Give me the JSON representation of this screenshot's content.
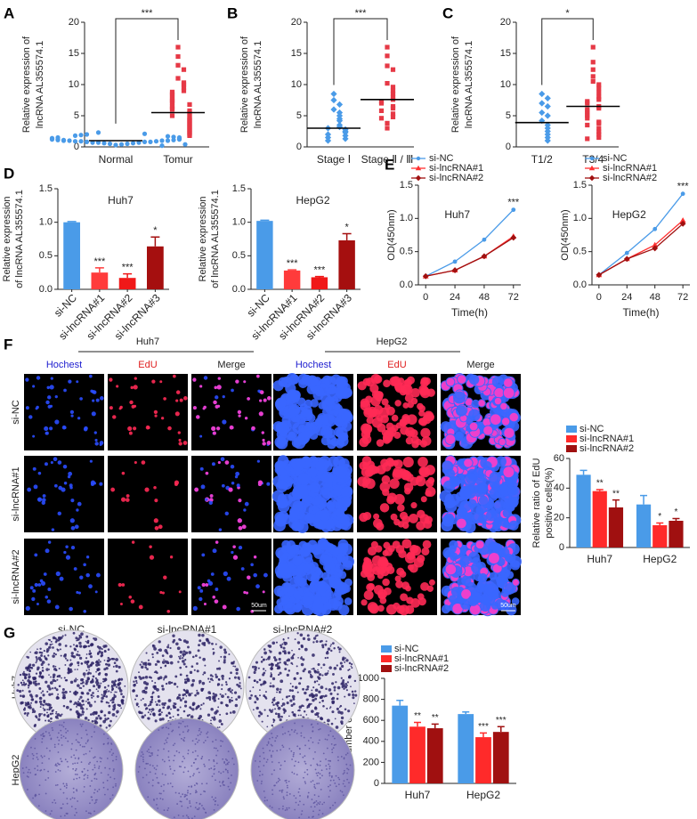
{
  "panel_labels": [
    "A",
    "B",
    "C",
    "D",
    "E",
    "F",
    "G"
  ],
  "edu": {
    "cell_lines": [
      "Huh7",
      "HepG2"
    ],
    "stains": [
      "Hochest",
      "EdU",
      "Merge"
    ],
    "rows": [
      "si-NC",
      "si-lncRNA#1",
      "si-lncRNA#2"
    ],
    "scale_bar": "50um"
  },
  "colony": {
    "columns": [
      "si-NC",
      "si-lncRNA#1",
      "si-lncRNA#2"
    ],
    "rows": [
      "Huh7",
      "HepG2"
    ]
  },
  "chart_data": [
    {
      "type": "strip",
      "ylabel": [
        "Relative expression of",
        "lncRNA AL355574.1"
      ],
      "categories": [
        "Normal",
        "Tomur"
      ],
      "colors": [
        "#4a9be8",
        "#e63946"
      ],
      "markers": [
        "circle",
        "square"
      ],
      "points": [
        [
          0.3,
          0.4,
          0.5,
          0.5,
          0.6,
          0.6,
          0.7,
          0.7,
          0.7,
          0.8,
          0.8,
          0.8,
          0.9,
          0.9,
          0.9,
          1.0,
          1.0,
          1.0,
          1.0,
          1.1,
          1.1,
          1.1,
          1.2,
          1.2,
          1.2,
          1.3,
          1.3,
          1.4,
          1.4,
          1.5,
          1.5,
          1.6,
          1.7,
          1.8,
          1.9,
          2.0,
          2.1,
          2.3,
          0.2,
          0.4
        ],
        [
          16.0,
          14.5,
          13.1,
          12.4,
          11.0,
          10.3,
          10.0,
          9.5,
          9.0,
          8.8,
          8.5,
          8.2,
          7.8,
          7.5,
          7.3,
          7.0,
          6.8,
          6.5,
          6.2,
          6.0,
          5.8,
          5.5,
          5.3,
          5.0,
          4.8,
          4.6,
          4.4,
          4.2,
          4.0,
          3.8,
          3.6,
          3.4,
          3.2,
          3.0,
          2.8,
          2.6,
          2.4,
          2.2,
          2.0,
          1.8
        ]
      ],
      "means": [
        1.0,
        5.5
      ],
      "annotation": "***",
      "ylim": [
        0,
        20
      ],
      "yticks": [
        0,
        5,
        10,
        15,
        20
      ]
    },
    {
      "type": "strip",
      "ylabel": [
        "Relative expression of",
        "lncRNA AL355574.1"
      ],
      "categories": [
        "Stage Ⅰ",
        "Stage Ⅱ / Ⅲ"
      ],
      "colors": [
        "#4a9be8",
        "#e63946"
      ],
      "markers": [
        "diamond",
        "square"
      ],
      "points": [
        [
          8.5,
          7.5,
          6.8,
          6.0,
          5.5,
          5.0,
          4.5,
          4.2,
          3.5,
          3.2,
          3.0,
          2.8,
          2.5,
          2.3,
          2.0,
          1.8,
          1.5,
          1.3,
          1.0
        ],
        [
          16.0,
          14.6,
          13.0,
          12.4,
          10.2,
          9.6,
          9.0,
          8.5,
          8.0,
          7.6,
          7.3,
          7.0,
          6.5,
          6.2,
          5.8,
          5.3,
          4.8,
          4.6,
          3.8,
          3.0
        ]
      ],
      "means": [
        3.0,
        7.6
      ],
      "annotation": "***",
      "ylim": [
        0,
        20
      ],
      "yticks": [
        0,
        5,
        10,
        15,
        20
      ]
    },
    {
      "type": "strip",
      "ylabel": [
        "Relative expression of",
        "lncRNA AL355574.1"
      ],
      "categories": [
        "T1/2",
        "T3/4"
      ],
      "colors": [
        "#4a9be8",
        "#e63946"
      ],
      "markers": [
        "diamond",
        "square"
      ],
      "points": [
        [
          8.5,
          7.8,
          7.0,
          6.5,
          5.5,
          5.0,
          4.2,
          3.5,
          3.0,
          2.5,
          2.0,
          1.5,
          1.0
        ],
        [
          16.0,
          13.6,
          12.4,
          11.3,
          10.5,
          10.0,
          9.4,
          8.7,
          8.0,
          7.6,
          7.3,
          7.0,
          6.5,
          6.2,
          6.0,
          5.7,
          5.3,
          5.0,
          4.6,
          4.0,
          3.8,
          3.5,
          3.0,
          2.4,
          2.0,
          1.5,
          1.3
        ]
      ],
      "means": [
        3.9,
        6.5
      ],
      "annotation": "*",
      "ylim": [
        0,
        20
      ],
      "yticks": [
        0,
        5,
        10,
        15,
        20
      ]
    },
    {
      "type": "bar",
      "title": "Huh7",
      "ylabel": [
        "Relative expression",
        "of lncRNA AL355574.1"
      ],
      "categories": [
        "si-NC",
        "si-lncRNA#1",
        "si-lncRNA#2",
        "si-lncRNA#3"
      ],
      "values": [
        1.0,
        0.25,
        0.17,
        0.64
      ],
      "errors": [
        0.01,
        0.07,
        0.06,
        0.14
      ],
      "sig": [
        null,
        "***",
        "***",
        "*"
      ],
      "colors": [
        "#4a9be8",
        "#ff3b3b",
        "#f01818",
        "#a50f0f"
      ],
      "ylim": [
        0,
        1.5
      ],
      "yticks": [
        {
          "value": 0,
          "label": "0.0"
        },
        0.5,
        {
          "value": 1,
          "label": "1.0"
        },
        1.5
      ]
    },
    {
      "type": "bar",
      "title": "HepG2",
      "ylabel": [
        "Relative expression",
        "of lncRNA AL355574.1"
      ],
      "categories": [
        "si-NC",
        "si-lncRNA#1",
        "si-lncRNA#2",
        "si-lncRNA#3"
      ],
      "values": [
        1.02,
        0.28,
        0.18,
        0.73
      ],
      "errors": [
        0.01,
        0.01,
        0.01,
        0.1
      ],
      "sig": [
        null,
        "***",
        "***",
        "*"
      ],
      "colors": [
        "#4a9be8",
        "#ff3b3b",
        "#f01818",
        "#a50f0f"
      ],
      "ylim": [
        0,
        1.5
      ],
      "yticks": [
        {
          "value": 0,
          "label": "0.0"
        },
        0.5,
        {
          "value": 1,
          "label": "1.0"
        },
        1.5
      ]
    },
    {
      "type": "line",
      "title": "Huh7",
      "ylabel": [
        "OD(450nm)"
      ],
      "xlabel": "Time(h)",
      "x": [
        0,
        24,
        48,
        72
      ],
      "series": [
        {
          "name": "si-NC",
          "color": "#4a9be8",
          "marker": "circle",
          "values": [
            0.13,
            0.35,
            0.68,
            1.13
          ]
        },
        {
          "name": "si-lncRNA#1",
          "color": "#ff3030",
          "marker": "triangle",
          "values": [
            0.13,
            0.22,
            0.43,
            0.73
          ]
        },
        {
          "name": "si-lncRNA#2",
          "color": "#a01010",
          "marker": "diamond",
          "values": [
            0.13,
            0.22,
            0.43,
            0.71
          ]
        }
      ],
      "annotation": "***",
      "xlim": [
        -6,
        78
      ],
      "xticks": [
        0,
        24,
        48,
        72
      ],
      "ylim": [
        0,
        1.5
      ],
      "yticks": [
        {
          "value": 0,
          "label": "0.0"
        },
        0.5,
        {
          "value": 1,
          "label": "1.0"
        },
        1.5
      ]
    },
    {
      "type": "line",
      "title": "HepG2",
      "ylabel": [
        "OD(450nm)"
      ],
      "xlabel": "Time(h)",
      "x": [
        0,
        24,
        48,
        72
      ],
      "series": [
        {
          "name": "si-NC",
          "color": "#4a9be8",
          "marker": "circle",
          "values": [
            0.15,
            0.48,
            0.84,
            1.37
          ]
        },
        {
          "name": "si-lncRNA#1",
          "color": "#ff3030",
          "marker": "triangle",
          "values": [
            0.15,
            0.39,
            0.6,
            0.97
          ]
        },
        {
          "name": "si-lncRNA#2",
          "color": "#a01010",
          "marker": "diamond",
          "values": [
            0.15,
            0.39,
            0.55,
            0.92
          ]
        }
      ],
      "annotation": "***",
      "xlim": [
        -6,
        78
      ],
      "xticks": [
        0,
        24,
        48,
        72
      ],
      "ylim": [
        0,
        1.5
      ],
      "yticks": [
        {
          "value": 0,
          "label": "0.0"
        },
        0.5,
        {
          "value": 1,
          "label": "1.0"
        },
        1.5
      ]
    },
    {
      "type": "grouped_bar",
      "ylabel": [
        "Relative ratio of EdU",
        "positive cells(%)"
      ],
      "categories": [
        "Huh7",
        "HepG2"
      ],
      "series": [
        {
          "name": "si-NC",
          "color": "#4a9be8",
          "values": [
            49,
            29
          ],
          "errors": [
            3,
            6
          ],
          "sig": [
            null,
            null
          ]
        },
        {
          "name": "si-lncRNA#1",
          "color": "#ff2a2a",
          "values": [
            38,
            15
          ],
          "errors": [
            1,
            1.5
          ],
          "sig": [
            "**",
            "*"
          ]
        },
        {
          "name": "si-lncRNA#2",
          "color": "#a01010",
          "values": [
            27,
            18
          ],
          "errors": [
            5,
            1.5
          ],
          "sig": [
            "**",
            "*"
          ]
        }
      ],
      "ylim": [
        0,
        60
      ],
      "yticks": [
        0,
        20,
        40,
        60
      ]
    },
    {
      "type": "grouped_bar",
      "ylabel": [
        "The number of colony"
      ],
      "categories": [
        "Huh7",
        "HepG2"
      ],
      "series": [
        {
          "name": "si-NC",
          "color": "#4a9be8",
          "values": [
            740,
            660
          ],
          "errors": [
            50,
            20
          ],
          "sig": [
            null,
            null
          ]
        },
        {
          "name": "si-lncRNA#1",
          "color": "#ff2a2a",
          "values": [
            540,
            440
          ],
          "errors": [
            40,
            40
          ],
          "sig": [
            "**",
            "***"
          ]
        },
        {
          "name": "si-lncRNA#2",
          "color": "#a01010",
          "values": [
            525,
            490
          ],
          "errors": [
            40,
            50
          ],
          "sig": [
            "**",
            "***"
          ]
        }
      ],
      "ylim": [
        0,
        1000
      ],
      "yticks": [
        0,
        200,
        400,
        600,
        800,
        1000
      ]
    }
  ]
}
